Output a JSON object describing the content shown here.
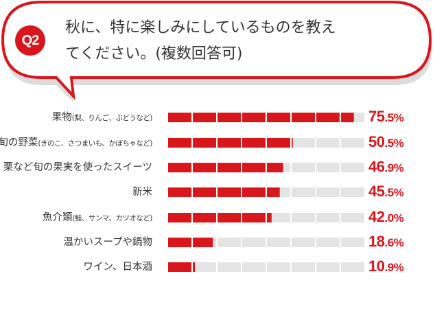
{
  "question": {
    "badge": "Q2",
    "line1": "秋に、特に楽しみにしているものを教え",
    "line2": "てください。(複数回答可)"
  },
  "colors": {
    "accent": "#d9161c",
    "track": "#e4e4e4"
  },
  "chart_data": {
    "type": "bar",
    "orientation": "horizontal",
    "xlim": [
      0,
      80
    ],
    "segment_step": 10,
    "categories": [
      {
        "main": "果物",
        "sub": "(梨、りんご、ぶどうなど)"
      },
      {
        "main": "旬の野菜",
        "sub": "(きのこ、さつまいも、かぼちゃなど)"
      },
      {
        "main": "栗など旬の果実を使ったスイーツ",
        "sub": ""
      },
      {
        "main": "新米",
        "sub": ""
      },
      {
        "main": "魚介類",
        "sub": "(鮭、サンマ、カツオなど)"
      },
      {
        "main": "温かいスープや鍋物",
        "sub": ""
      },
      {
        "main": "ワイン、日本酒",
        "sub": ""
      }
    ],
    "values": [
      75.5,
      50.5,
      46.9,
      45.5,
      42.0,
      18.6,
      10.9
    ],
    "labels": [
      {
        "int": "75",
        "dec": ".5%"
      },
      {
        "int": "50",
        "dec": ".5%"
      },
      {
        "int": "46",
        "dec": ".9%"
      },
      {
        "int": "45",
        "dec": ".5%"
      },
      {
        "int": "42",
        "dec": ".0%"
      },
      {
        "int": "18",
        "dec": ".6%"
      },
      {
        "int": "10",
        "dec": ".9%"
      }
    ]
  }
}
